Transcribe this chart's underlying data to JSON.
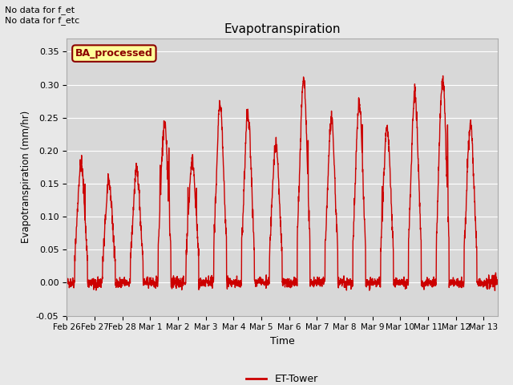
{
  "title": "Evapotranspiration",
  "ylabel": "Evapotranspiration (mm/hr)",
  "xlabel": "Time",
  "ylim": [
    -0.05,
    0.37
  ],
  "line_color": "#cc0000",
  "line_width": 1.0,
  "background_color": "#e8e8e8",
  "plot_bg_color": "#d8d8d8",
  "legend_label": "ET-Tower",
  "legend_box_color": "#ffff99",
  "legend_box_edge": "#8B0000",
  "annotation1": "No data for f_et",
  "annotation2": "No data for f_etc",
  "legend_text": "BA_processed",
  "xtick_labels": [
    "Feb 26",
    "Feb 27",
    "Feb 28",
    "Mar 1",
    "Mar 2",
    "Mar 3",
    "Mar 4",
    "Mar 5",
    "Mar 6",
    "Mar 7",
    "Mar 8",
    "Mar 9",
    "Mar 10",
    "Mar 11",
    "Mar 12",
    "Mar 13"
  ],
  "ytick_values": [
    -0.05,
    0.0,
    0.05,
    0.1,
    0.15,
    0.2,
    0.25,
    0.3,
    0.35
  ],
  "n_days": 16,
  "seed": 42,
  "peak_values": [
    0.18,
    0.15,
    0.17,
    0.24,
    0.185,
    0.27,
    0.255,
    0.21,
    0.31,
    0.245,
    0.27,
    0.235,
    0.285,
    0.31,
    0.24,
    0.0
  ]
}
